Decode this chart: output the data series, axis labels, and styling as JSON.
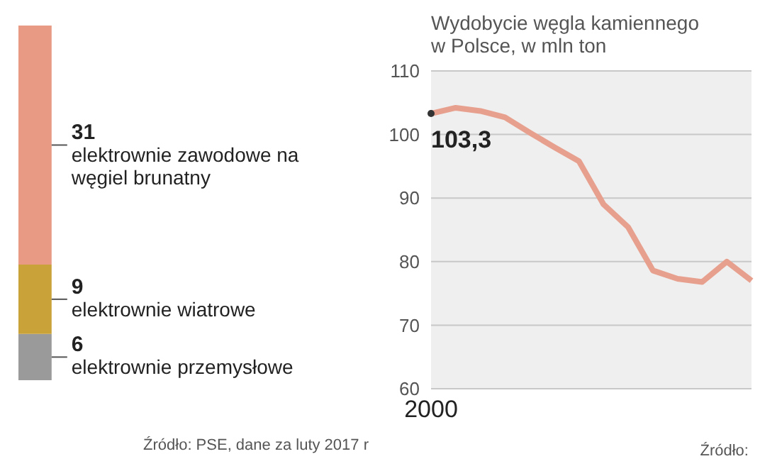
{
  "chart_data": [
    {
      "type": "bar",
      "stacked": true,
      "categories": [
        null
      ],
      "data_labels": true,
      "annotations": [
        "Źródło: PSE, dane za luty 2017 r"
      ],
      "series": [
        {
          "name": "elektrownie przemysłowe",
          "color": "#9a9a9a",
          "values": [
            6
          ]
        },
        {
          "name": "elektrownie wiatrowe",
          "color": "#c9a23a",
          "values": [
            9
          ]
        },
        {
          "name": "elektrownie zawodowe na węgiel brunatny",
          "color": "#e89a84",
          "values": [
            31
          ]
        }
      ]
    },
    {
      "type": "line",
      "title": "Wydobycie węgla kamiennego\nw Polsce, w mln ton",
      "categories": [
        "2000",
        null,
        null,
        null,
        null,
        null,
        null,
        null,
        null,
        null,
        null,
        null,
        null,
        null
      ],
      "series": [
        {
          "color": "#e8a08e",
          "values": [
            103.3,
            104.2,
            103.7,
            102.7,
            100.3,
            98,
            95.8,
            89,
            85.4,
            78.6,
            77.3,
            76.8,
            80,
            77
          ],
          "value_labels": [
            "103,3",
            null,
            null,
            null,
            null,
            null,
            null,
            null,
            null,
            null,
            null,
            null,
            null,
            null
          ]
        }
      ],
      "ylim": [
        60,
        110
      ],
      "yticks": [
        60,
        70,
        80,
        90,
        100,
        110
      ],
      "grid": "y",
      "annotations": [
        "Źródło:"
      ]
    }
  ]
}
